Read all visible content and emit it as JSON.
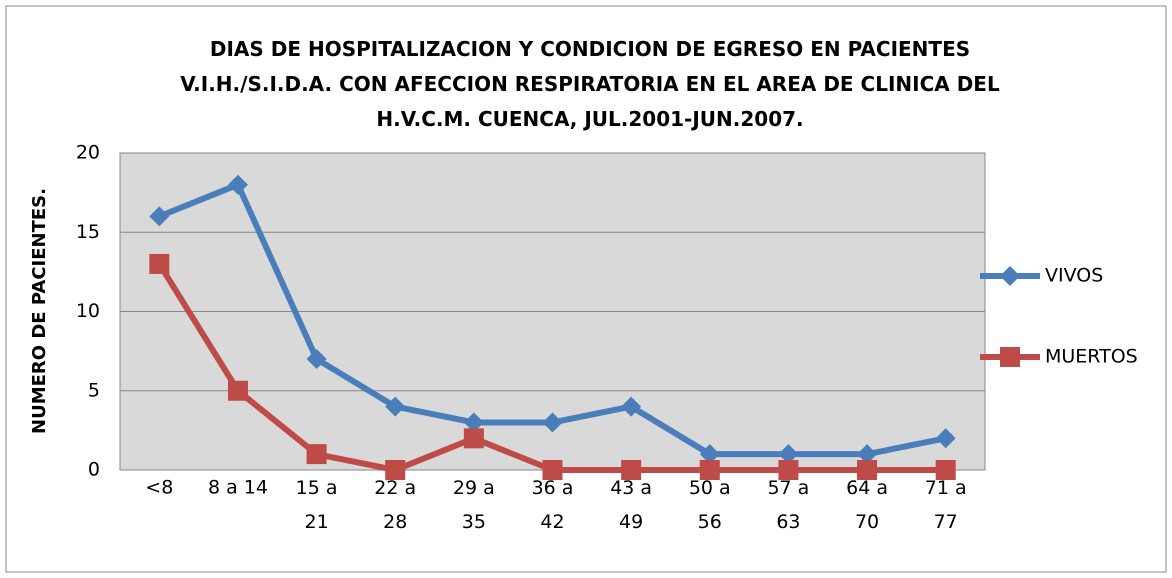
{
  "chart_data": {
    "type": "line",
    "title": "DIAS DE HOSPITALIZACION Y CONDICION DE EGRESO EN PACIENTES V.I.H./S.I.D.A. CON AFECCION RESPIRATORIA EN EL AREA DE CLINICA DEL H.V.C.M. CUENCA, JUL.2001-JUN.2007.",
    "y_label": "NUMERO DE PACIENTES.",
    "categories": [
      "<8",
      "8 a 14",
      "15 a 21",
      "22 a 28",
      "29 a 35",
      "36 a 42",
      "43 a 49",
      "50 a 56",
      "57 a 63",
      "64 a 70",
      "71 a 77"
    ],
    "series": [
      {
        "name": "VIVOS",
        "color": "#4a7ebb",
        "marker": "diamond",
        "values": [
          16,
          18,
          7,
          4,
          3,
          3,
          4,
          1,
          1,
          1,
          2
        ]
      },
      {
        "name": "MUERTOS",
        "color": "#be4b48",
        "marker": "square",
        "values": [
          13,
          5,
          1,
          0,
          2,
          0,
          0,
          0,
          0,
          0,
          0
        ]
      }
    ],
    "ylim": [
      0,
      20
    ],
    "yticks": [
      0,
      5,
      10,
      15,
      20
    ],
    "grid": true,
    "legend": "right"
  }
}
